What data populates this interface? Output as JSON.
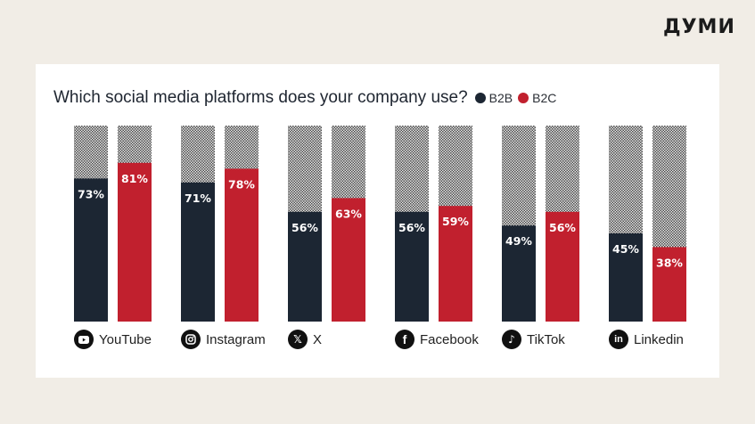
{
  "brand": {
    "logo_text": "ДУМИ"
  },
  "colors": {
    "b2b": "#1c2633",
    "b2c": "#c1202e",
    "remainder_light": "#e6e6e6",
    "remainder_dark": "#555555"
  },
  "chart_data": {
    "type": "bar",
    "title": "Which social media platforms does your company use?",
    "categories": [
      "YouTube",
      "Instagram",
      "X",
      "Facebook",
      "TikTok",
      "Linkedin"
    ],
    "category_icons": [
      "youtube-icon",
      "instagram-icon",
      "x-icon",
      "facebook-icon",
      "tiktok-icon",
      "linkedin-icon"
    ],
    "series": [
      {
        "name": "B2B",
        "values": [
          73,
          71,
          56,
          56,
          49,
          45
        ]
      },
      {
        "name": "B2C",
        "values": [
          81,
          78,
          63,
          59,
          56,
          38
        ]
      }
    ],
    "value_labels": {
      "B2B": [
        "73%",
        "71%",
        "56%",
        "56%",
        "49%",
        "45%"
      ],
      "B2C": [
        "81%",
        "78%",
        "63%",
        "59%",
        "56%",
        "38%"
      ]
    },
    "ylim": [
      0,
      100
    ],
    "legend_position": "top (inline with title)",
    "grid": false
  }
}
